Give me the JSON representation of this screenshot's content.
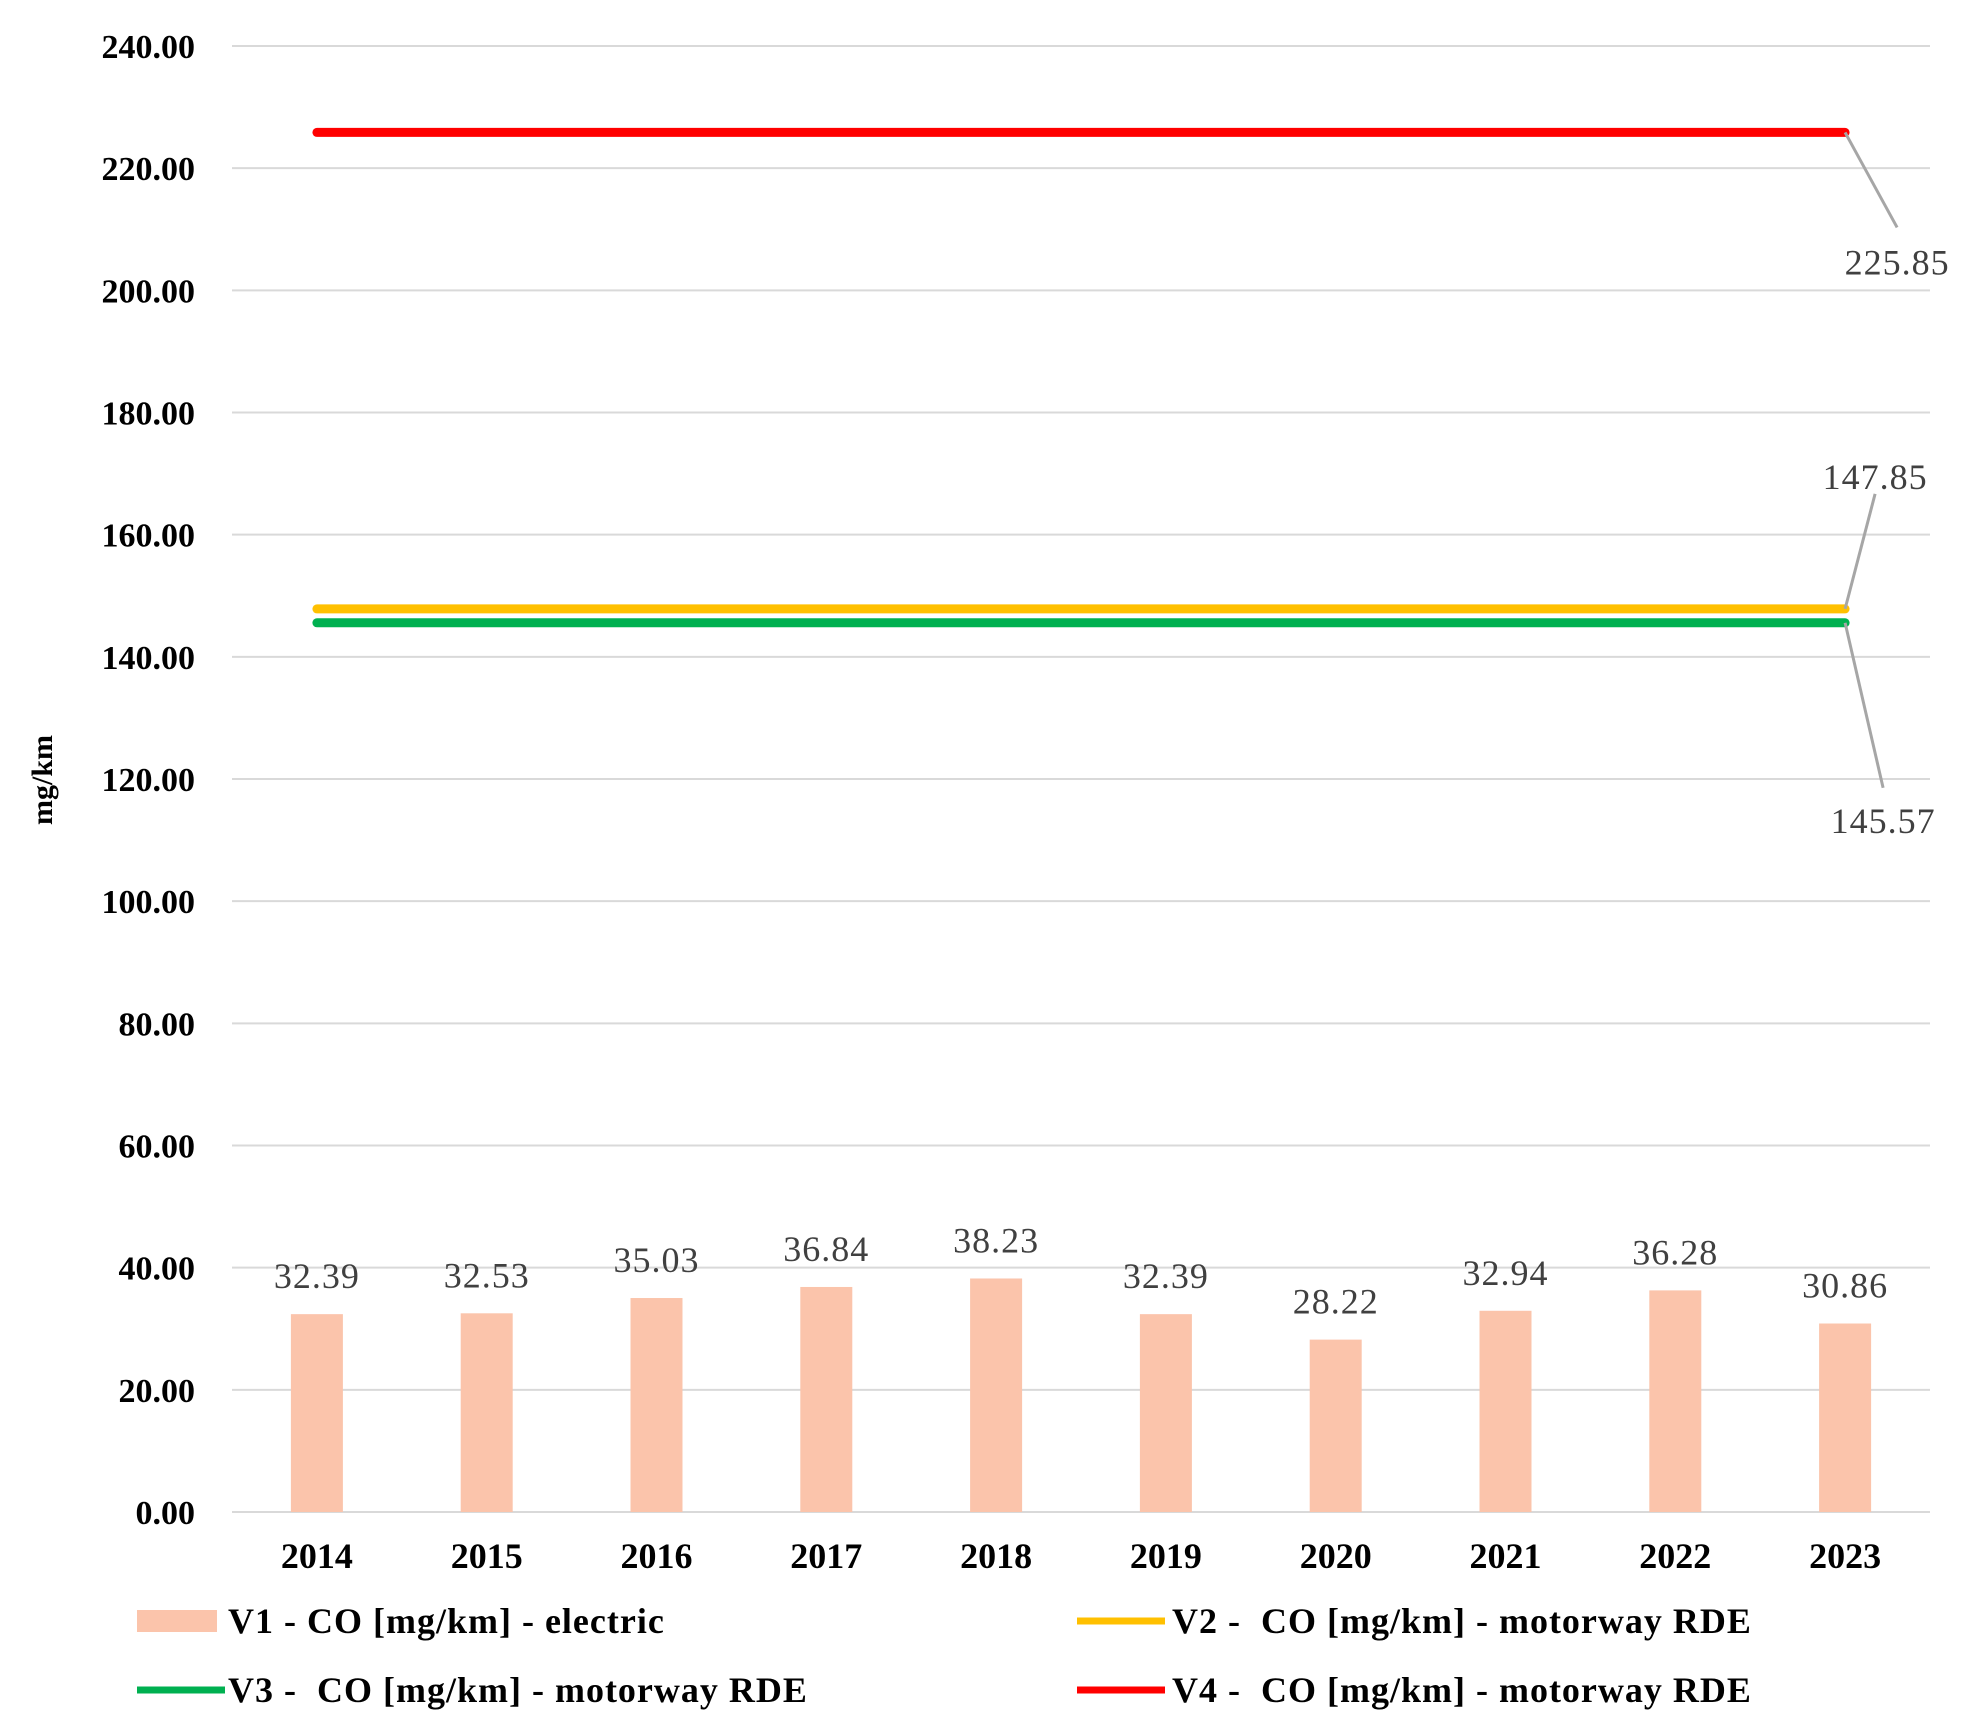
{
  "chart_data": {
    "type": "bar",
    "title": "",
    "xlabel": "",
    "ylabel": "mg/km",
    "ylim": [
      0,
      240
    ],
    "yticks": [
      "0.00",
      "20.00",
      "40.00",
      "60.00",
      "80.00",
      "100.00",
      "120.00",
      "140.00",
      "160.00",
      "180.00",
      "200.00",
      "220.00",
      "240.00"
    ],
    "grid": true,
    "categories": [
      "2014",
      "2015",
      "2016",
      "2017",
      "2018",
      "2019",
      "2020",
      "2021",
      "2022",
      "2023"
    ],
    "series": [
      {
        "name": "V1 - CO [mg/km] - electric",
        "type": "bar",
        "color": "#FBC4AB",
        "values": [
          32.39,
          32.53,
          35.03,
          36.84,
          38.23,
          32.39,
          28.22,
          32.94,
          36.28,
          30.86
        ],
        "labels": [
          "32.39",
          "32.53",
          "35.03",
          "36.84",
          "38.23",
          "32.39",
          "28.22",
          "32.94",
          "36.28",
          "30.86"
        ]
      },
      {
        "name": "V2 -  CO [mg/km] - motorway RDE",
        "type": "line",
        "color": "#FFC000",
        "values": [
          147.85,
          147.85,
          147.85,
          147.85,
          147.85,
          147.85,
          147.85,
          147.85,
          147.85,
          147.85
        ],
        "end_label": "147.85"
      },
      {
        "name": "V3 -  CO [mg/km] - motorway RDE",
        "type": "line",
        "color": "#00B050",
        "values": [
          145.57,
          145.57,
          145.57,
          145.57,
          145.57,
          145.57,
          145.57,
          145.57,
          145.57,
          145.57
        ],
        "end_label": "145.57"
      },
      {
        "name": "V4 -  CO [mg/km] - motorway RDE",
        "type": "line",
        "color": "#FF0000",
        "values": [
          225.85,
          225.85,
          225.85,
          225.85,
          225.85,
          225.85,
          225.85,
          225.85,
          225.85,
          225.85
        ],
        "end_label": "225.85"
      }
    ],
    "legend": "bottom"
  }
}
